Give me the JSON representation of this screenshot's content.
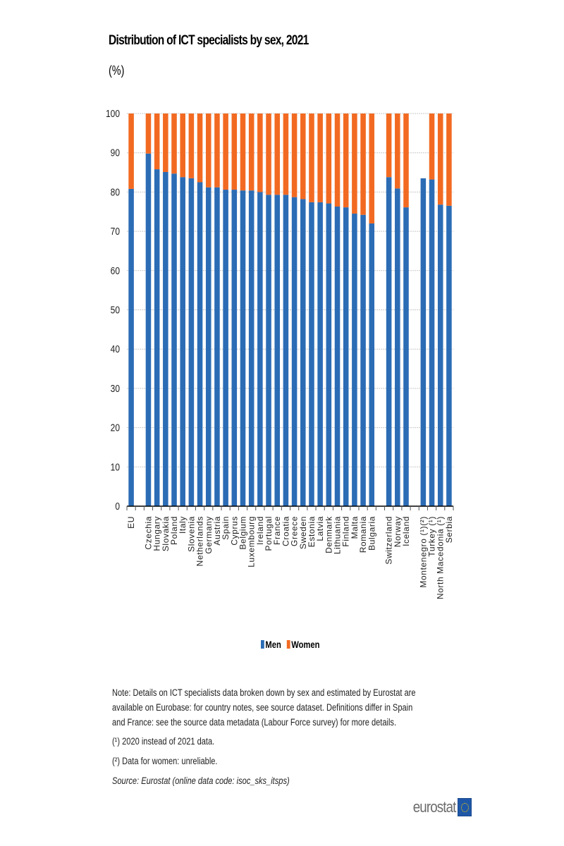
{
  "header": {
    "title": "Distribution of ICT specialists by sex, 2021",
    "unit": "(%)"
  },
  "legend": {
    "items": [
      {
        "label": "Men",
        "color": "#2B6CB5"
      },
      {
        "label": "Women",
        "color": "#F26A22"
      }
    ]
  },
  "notes": {
    "note": "Note: Details on ICT specialists data broken down by sex and estimated by Eurostat are available on Eurobase: for country notes, see source dataset. Definitions differ in Spain and France: see the source data metadata (Labour Force survey) for more details.",
    "footnote1": "(¹) 2020 instead of 2021 data.",
    "footnote2": "(²) Data for women: unreliable.",
    "source": "Source: Eurostat (online data code: isoc_sks_itsps)"
  },
  "logo": {
    "text": "eurostat"
  },
  "chart_data": {
    "type": "bar",
    "stacked": true,
    "title": "Distribution of ICT specialists by sex, 2021",
    "ylabel": "(%)",
    "xlabel": "",
    "ylim": [
      0,
      100
    ],
    "yticks": [
      0,
      10,
      20,
      30,
      40,
      50,
      60,
      70,
      80,
      90,
      100
    ],
    "grid": true,
    "legend_position": "bottom",
    "groups": [
      {
        "categories": [
          "EU"
        ]
      },
      {
        "categories": [
          "Czechia",
          "Hungary",
          "Slovakia",
          "Poland",
          "Italy",
          "Slovenia",
          "Netherlands",
          "Germany",
          "Austria",
          "Spain",
          "Cyprus",
          "Belgium",
          "Luxembourg",
          "Ireland",
          "Portugal",
          "France",
          "Croatia",
          "Greece",
          "Sweden",
          "Estonia",
          "Latvia",
          "Denmark",
          "Lithuania",
          "Finland",
          "Malta",
          "Romania",
          "Bulgaria"
        ]
      },
      {
        "categories": [
          "Switzerland",
          "Norway",
          "Iceland"
        ]
      },
      {
        "categories": [
          "Montenegro (¹)(²)",
          "Turkey (¹)",
          "North Macedonia (¹)",
          "Serbia"
        ]
      }
    ],
    "categories": [
      "EU",
      "",
      "Czechia",
      "Hungary",
      "Slovakia",
      "Poland",
      "Italy",
      "Slovenia",
      "Netherlands",
      "Germany",
      "Austria",
      "Spain",
      "Cyprus",
      "Belgium",
      "Luxembourg",
      "Ireland",
      "Portugal",
      "France",
      "Croatia",
      "Greece",
      "Sweden",
      "Estonia",
      "Latvia",
      "Denmark",
      "Lithuania",
      "Finland",
      "Malta",
      "Romania",
      "Bulgaria",
      "",
      "Switzerland",
      "Norway",
      "Iceland",
      "",
      "Montenegro (¹)(²)",
      "Turkey (¹)",
      "North Macedonia (¹)",
      "Serbia"
    ],
    "series": [
      {
        "name": "Men",
        "color": "#2B6CB5",
        "values": [
          80.8,
          null,
          89.8,
          85.8,
          85.1,
          84.7,
          83.8,
          83.5,
          82.5,
          81.2,
          81.2,
          80.6,
          80.6,
          80.4,
          80.4,
          80.0,
          79.3,
          79.3,
          79.3,
          78.7,
          78.2,
          77.4,
          77.4,
          77.1,
          76.3,
          76.1,
          74.5,
          74.2,
          72.0,
          null,
          83.8,
          80.9,
          76.1,
          null,
          83.5,
          83.2,
          76.8,
          76.5
        ]
      },
      {
        "name": "Women",
        "color": "#F26A22",
        "values": [
          19.2,
          null,
          10.2,
          14.2,
          14.9,
          15.3,
          16.2,
          16.5,
          17.5,
          18.8,
          18.8,
          19.4,
          19.4,
          19.6,
          19.6,
          20.0,
          20.7,
          20.7,
          20.7,
          21.3,
          21.8,
          22.6,
          22.6,
          22.9,
          23.7,
          23.9,
          25.5,
          25.8,
          28.0,
          null,
          16.2,
          19.1,
          23.9,
          null,
          null,
          16.8,
          23.2,
          23.5
        ]
      }
    ]
  }
}
